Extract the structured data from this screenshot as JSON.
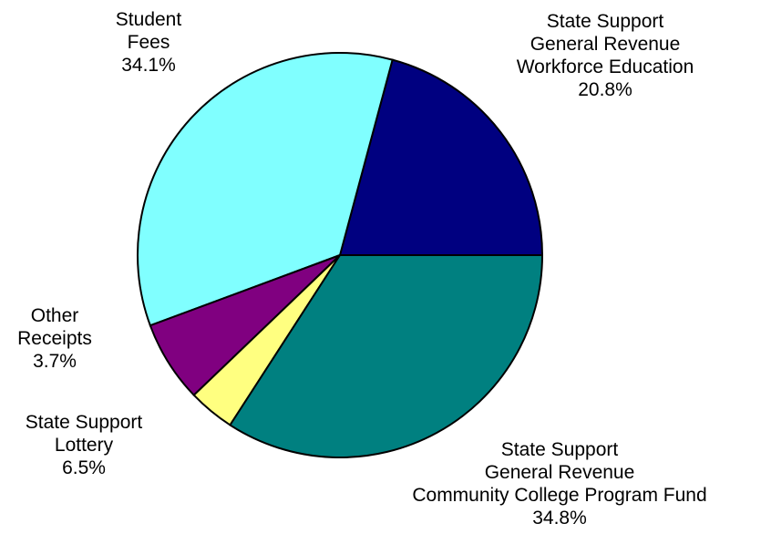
{
  "chart_data": {
    "type": "pie",
    "slices": [
      {
        "label": [
          "State Support",
          "General Revenue",
          "Workforce Education"
        ],
        "pct_text": "20.8%",
        "value": 20.8,
        "color": "#000080"
      },
      {
        "label": [
          "State Support",
          "General Revenue",
          "Community College Program Fund"
        ],
        "pct_text": "34.8%",
        "value": 34.8,
        "color": "#80FFFF"
      },
      {
        "label": [
          "State Support",
          "Lottery"
        ],
        "pct_text": "6.5%",
        "value": 6.5,
        "color": "#800080"
      },
      {
        "label": [
          "Other",
          "Receipts"
        ],
        "pct_text": "3.7%",
        "value": 3.7,
        "color": "#FFFF80"
      },
      {
        "label": [
          "Student",
          "Fees"
        ],
        "pct_text": "34.1%",
        "value": 34.1,
        "color": "#008080"
      }
    ]
  }
}
